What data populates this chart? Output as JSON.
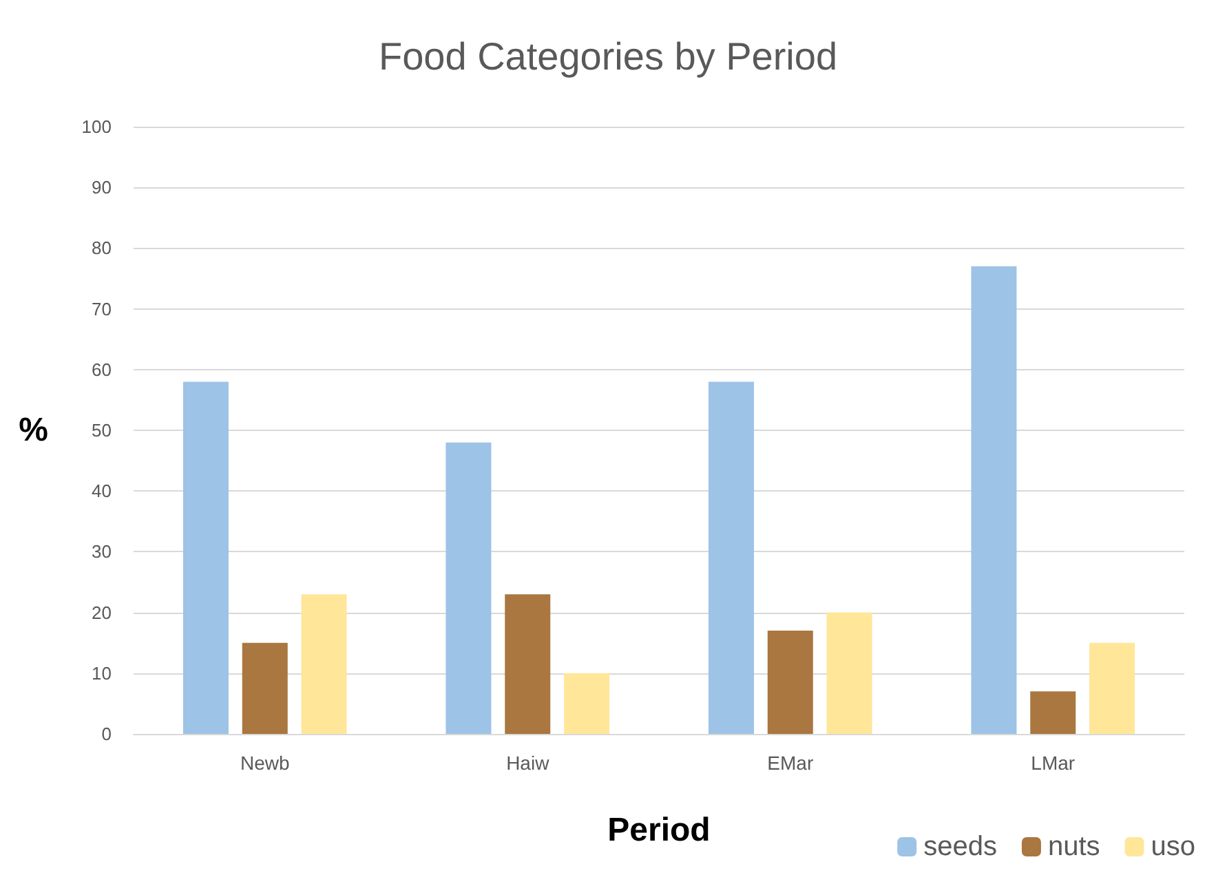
{
  "chart_data": {
    "type": "bar",
    "title": "Food Categories by Period",
    "xlabel": "Period",
    "ylabel": "%",
    "categories": [
      "Newb",
      "Haiw",
      "EMar",
      "LMar"
    ],
    "series": [
      {
        "name": "seeds",
        "color": "#9dc3e6",
        "values": [
          58,
          48,
          58,
          77
        ]
      },
      {
        "name": "nuts",
        "color": "#a9773f",
        "values": [
          15,
          23,
          17,
          7
        ]
      },
      {
        "name": "uso",
        "color": "#ffe699",
        "values": [
          23,
          10,
          20,
          15
        ]
      }
    ],
    "ylim": [
      0,
      100
    ],
    "yticks": [
      0,
      10,
      20,
      30,
      40,
      50,
      60,
      70,
      80,
      90,
      100
    ],
    "grid": "y",
    "legend": "bottom right"
  }
}
